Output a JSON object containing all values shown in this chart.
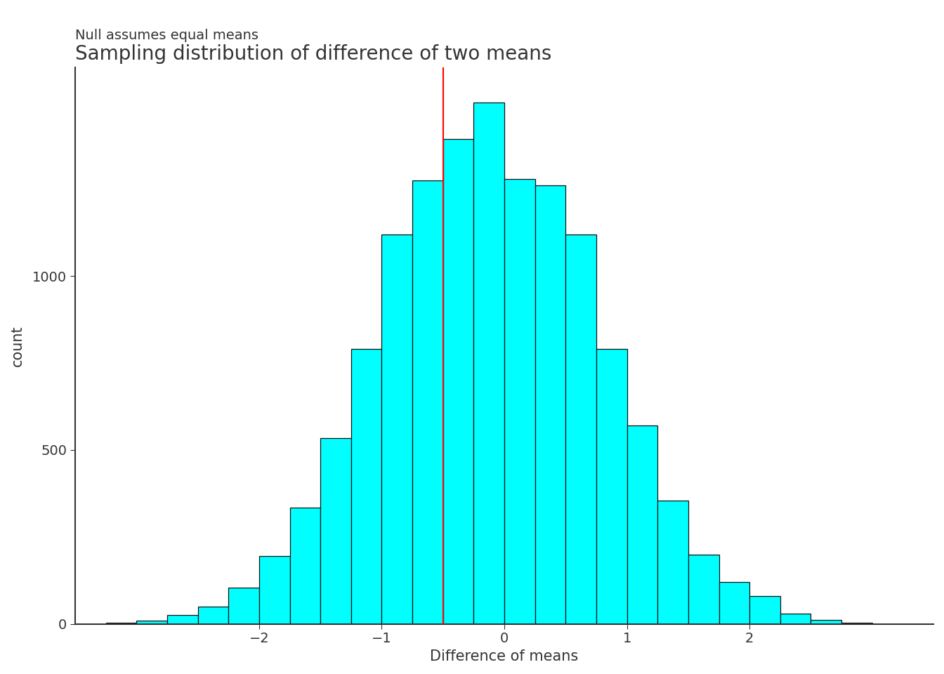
{
  "title": "Sampling distribution of difference of two means",
  "subtitle": "Null assumes equal means",
  "xlabel": "Difference of means",
  "ylabel": "count",
  "bar_color": "#00FFFF",
  "bar_edgecolor": "#111111",
  "red_line_x": -0.5,
  "red_line_color": "red",
  "bin_centers": [
    -3.125,
    -2.875,
    -2.625,
    -2.375,
    -2.125,
    -1.875,
    -1.625,
    -1.375,
    -1.125,
    -0.875,
    -0.625,
    -0.375,
    -0.125,
    0.125,
    0.375,
    0.625,
    0.875,
    1.125,
    1.375,
    1.625,
    1.875,
    2.125,
    2.375,
    2.625,
    2.875
  ],
  "counts": [
    3,
    10,
    25,
    50,
    105,
    195,
    335,
    535,
    790,
    1120,
    1275,
    1395,
    1500,
    1280,
    1260,
    1120,
    790,
    570,
    355,
    200,
    120,
    80,
    30,
    12,
    3
  ],
  "bar_width": 0.25,
  "xlim": [
    -3.5,
    3.5
  ],
  "ylim": [
    0,
    1600
  ],
  "xticks": [
    -2,
    -1,
    0,
    1,
    2
  ],
  "yticks": [
    0,
    500,
    1000
  ],
  "background_color": "#ffffff",
  "title_fontsize": 20,
  "subtitle_fontsize": 14,
  "subtitle_color": "#333333",
  "label_fontsize": 15,
  "tick_fontsize": 14,
  "spine_color": "#333333",
  "text_color": "#333333"
}
